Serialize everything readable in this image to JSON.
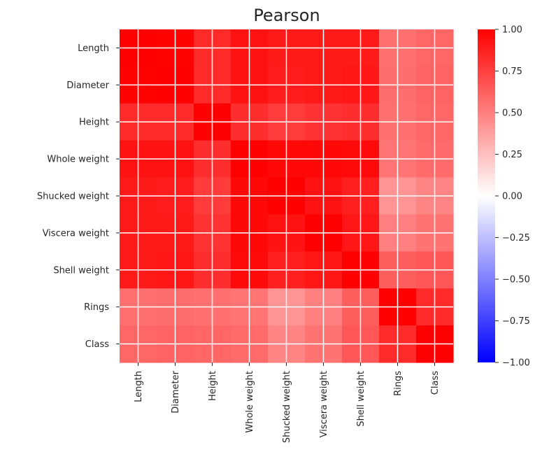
{
  "chart_data": {
    "type": "heatmap",
    "title": "Pearson",
    "xlabel": "",
    "ylabel": "",
    "rows": [
      "Length",
      "Diameter",
      "Height",
      "Whole weight",
      "Shucked weight",
      "Viscera weight",
      "Shell weight",
      "Rings",
      "Class"
    ],
    "cols": [
      "Length",
      "Diameter",
      "Height",
      "Whole weight",
      "Shucked weight",
      "Viscera weight",
      "Shell weight",
      "Rings",
      "Class"
    ],
    "values": [
      [
        1.0,
        0.99,
        0.83,
        0.93,
        0.9,
        0.9,
        0.9,
        0.56,
        0.6
      ],
      [
        0.99,
        1.0,
        0.83,
        0.93,
        0.89,
        0.9,
        0.91,
        0.57,
        0.61
      ],
      [
        0.83,
        0.83,
        1.0,
        0.82,
        0.77,
        0.8,
        0.82,
        0.56,
        0.6
      ],
      [
        0.93,
        0.93,
        0.82,
        1.0,
        0.97,
        0.97,
        0.96,
        0.54,
        0.58
      ],
      [
        0.9,
        0.89,
        0.77,
        0.97,
        1.0,
        0.93,
        0.88,
        0.42,
        0.48
      ],
      [
        0.9,
        0.9,
        0.8,
        0.97,
        0.93,
        1.0,
        0.91,
        0.5,
        0.55
      ],
      [
        0.9,
        0.91,
        0.82,
        0.96,
        0.88,
        0.91,
        1.0,
        0.63,
        0.66
      ],
      [
        0.56,
        0.57,
        0.56,
        0.54,
        0.42,
        0.5,
        0.63,
        1.0,
        0.83
      ],
      [
        0.6,
        0.61,
        0.6,
        0.58,
        0.48,
        0.55,
        0.66,
        0.83,
        1.0
      ]
    ],
    "colormap": {
      "low": "#0000ff",
      "mid": "#ffffff",
      "high": "#ff0000"
    },
    "vmin": -1.0,
    "vmax": 1.0,
    "colorbar_ticks": [
      "1.00",
      "0.75",
      "0.50",
      "0.25",
      "0.00",
      "−0.25",
      "−0.50",
      "−0.75",
      "−1.00"
    ],
    "colorbar_tick_values": [
      1.0,
      0.75,
      0.5,
      0.25,
      0.0,
      -0.25,
      -0.5,
      -0.75,
      -1.0
    ],
    "grid": true,
    "legend": "colorbar-right"
  }
}
